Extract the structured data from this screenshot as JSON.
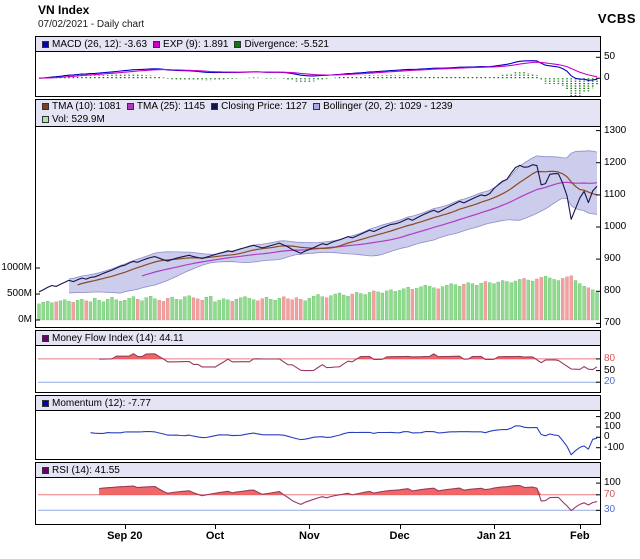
{
  "header": {
    "title": "VN Index",
    "subtitle": "07/02/2021 - Daily chart",
    "brand": "VCBS"
  },
  "chart_data": {
    "type": "line",
    "title": "VN Index",
    "subtitle": "07/02/2021 - Daily chart",
    "x_unit": "trading days (Aug 2020 - Feb 2021)",
    "x_ticks": [
      {
        "label": "Sep 20",
        "i": 20
      },
      {
        "label": "Oct",
        "i": 41
      },
      {
        "label": "Nov",
        "i": 63
      },
      {
        "label": "Dec",
        "i": 84
      },
      {
        "label": "Jan 21",
        "i": 106
      },
      {
        "label": "Feb",
        "i": 126
      }
    ],
    "close": [
      798,
      805,
      812,
      818,
      815,
      822,
      828,
      834,
      830,
      836,
      841,
      838,
      843,
      845,
      850,
      856,
      861,
      866,
      872,
      878,
      881,
      888,
      893,
      890,
      896,
      901,
      905,
      908,
      903,
      898,
      894,
      899,
      903,
      906,
      909,
      912,
      908,
      905,
      902,
      906,
      910,
      914,
      918,
      922,
      926,
      923,
      928,
      932,
      936,
      940,
      943,
      939,
      935,
      938,
      942,
      946,
      950,
      944,
      938,
      930,
      924,
      918,
      925,
      930,
      936,
      942,
      948,
      945,
      951,
      956,
      960,
      965,
      970,
      966,
      972,
      978,
      984,
      990,
      986,
      992,
      998,
      1003,
      1008,
      1010,
      1014,
      1020,
      1026,
      1021,
      1028,
      1035,
      1041,
      1047,
      1052,
      1046,
      1053,
      1060,
      1067,
      1073,
      1080,
      1075,
      1082,
      1088,
      1094,
      1100,
      1097,
      1104,
      1120,
      1132,
      1143,
      1148,
      1168,
      1185,
      1192,
      1186,
      1187,
      1194,
      1191,
      1131,
      1135,
      1164,
      1166,
      1166,
      1136,
      1097,
      1024,
      1057,
      1090,
      1111,
      1076,
      1112,
      1127
    ],
    "volume_m": [
      310,
      340,
      360,
      330,
      350,
      370,
      390,
      360,
      340,
      380,
      400,
      370,
      350,
      420,
      380,
      350,
      400,
      440,
      390,
      360,
      380,
      420,
      450,
      400,
      370,
      430,
      460,
      410,
      380,
      360,
      420,
      440,
      400,
      390,
      450,
      470,
      430,
      410,
      380,
      440,
      460,
      350,
      380,
      410,
      390,
      360,
      400,
      430,
      450,
      420,
      390,
      370,
      410,
      440,
      400,
      380,
      420,
      450,
      410,
      390,
      430,
      400,
      370,
      420,
      460,
      490,
      450,
      430,
      470,
      500,
      520,
      480,
      460,
      500,
      530,
      510,
      490,
      530,
      560,
      540,
      520,
      560,
      580,
      550,
      570,
      600,
      630,
      590,
      610,
      640,
      670,
      650,
      620,
      600,
      640,
      670,
      700,
      680,
      650,
      690,
      720,
      700,
      670,
      710,
      740,
      720,
      700,
      730,
      760,
      740,
      720,
      750,
      780,
      800,
      770,
      750,
      790,
      820,
      840,
      810,
      780,
      760,
      800,
      830,
      850,
      760,
      700,
      650,
      620,
      580,
      530
    ],
    "panels": {
      "macd": {
        "legend": [
          {
            "text": "MACD (26, 12): -3.63",
            "color": "#0000B4"
          },
          {
            "text": "EXP (9): 1.891",
            "color": "#C800C8"
          },
          {
            "text": "Divergence: -5.521",
            "color": "#0E7A0E"
          }
        ],
        "domain": [
          -38,
          58
        ],
        "right_ticks": [
          {
            "v": 50,
            "label": "50"
          },
          {
            "v": 0,
            "label": "0"
          }
        ]
      },
      "price": {
        "legend": [
          {
            "text": "TMA (10): 1081",
            "color": "#7B4222"
          },
          {
            "text": "TMA (25): 1145",
            "color": "#AC39C0"
          },
          {
            "text": "Closing Price: 1127",
            "color": "#141452"
          },
          {
            "text": "Bollinger (20, 2): 1029 - 1239",
            "color": "#A9A9DF"
          }
        ],
        "legend2": [
          {
            "text": "Vol: 529.9M",
            "color": "#A9E8A9"
          }
        ],
        "domain": [
          695,
          1305
        ],
        "right_ticks": [
          {
            "v": 1300,
            "label": "1300"
          },
          {
            "v": 1200,
            "label": "1200"
          },
          {
            "v": 1100,
            "label": "1100"
          },
          {
            "v": 1000,
            "label": "1000"
          },
          {
            "v": 900,
            "label": "900"
          },
          {
            "v": 800,
            "label": "800"
          },
          {
            "v": 700,
            "label": "700"
          }
        ],
        "left_ticks": [
          {
            "v": 1000,
            "label": "1000M"
          },
          {
            "v": 500,
            "label": "500M"
          },
          {
            "v": 0,
            "label": "0M"
          }
        ],
        "vol_axis_max_m": 1000
      },
      "mfi": {
        "legend": [
          {
            "text": "Money Flow Index (14): 44.11",
            "color": "#6A006A"
          }
        ],
        "domain": [
          0,
          108
        ],
        "overbought": 80,
        "hlines": [
          {
            "v": 80,
            "color": "#E87A7A"
          },
          {
            "v": 20,
            "color": "#92AAE4"
          }
        ],
        "right_ticks": [
          {
            "v": 80,
            "label": "80",
            "color": "#D95555"
          },
          {
            "v": 50,
            "label": "50",
            "color": "#000000"
          },
          {
            "v": 20,
            "label": "20",
            "color": "#5070D0"
          }
        ]
      },
      "momentum": {
        "legend": [
          {
            "text": "Momentum (12): -7.77",
            "color": "#0000B4"
          }
        ],
        "domain": [
          -190,
          235
        ],
        "right_ticks": [
          {
            "v": 200,
            "label": "200"
          },
          {
            "v": 100,
            "label": "100"
          },
          {
            "v": 0,
            "label": "0"
          },
          {
            "v": -100,
            "label": "-100"
          }
        ]
      },
      "rsi": {
        "legend": [
          {
            "text": "RSI (14): 41.55",
            "color": "#6A006A"
          }
        ],
        "domain": [
          0,
          108
        ],
        "overbought": 70,
        "hlines": [
          {
            "v": 70,
            "color": "#E87A7A"
          },
          {
            "v": 30,
            "color": "#92AAE4"
          }
        ],
        "right_ticks": [
          {
            "v": 100,
            "label": "100",
            "color": "#000000"
          },
          {
            "v": 70,
            "label": "70",
            "color": "#D95555"
          },
          {
            "v": 30,
            "label": "30",
            "color": "#5070D0"
          }
        ]
      }
    }
  }
}
